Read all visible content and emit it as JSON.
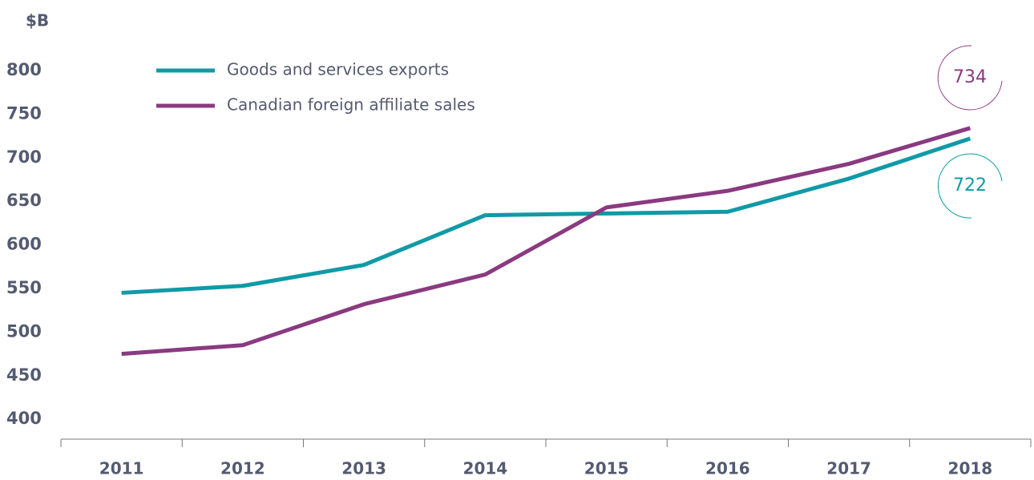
{
  "chart_data": {
    "type": "line",
    "y_axis_label": "$B",
    "categories": [
      "2011",
      "2012",
      "2013",
      "2014",
      "2015",
      "2016",
      "2017",
      "2018"
    ],
    "series": [
      {
        "name": "Goods and services exports",
        "color": "#0f9aa6",
        "values": [
          545,
          553,
          577,
          634,
          636,
          638,
          676,
          722
        ]
      },
      {
        "name": "Canadian foreign affiliate sales",
        "color": "#8a3a80",
        "values": [
          475,
          485,
          532,
          566,
          643,
          662,
          693,
          734
        ]
      }
    ],
    "ylim": [
      380,
      820
    ],
    "yticks": [
      400,
      450,
      500,
      550,
      600,
      650,
      700,
      750,
      800
    ],
    "grid": false,
    "legend": "top-left"
  }
}
